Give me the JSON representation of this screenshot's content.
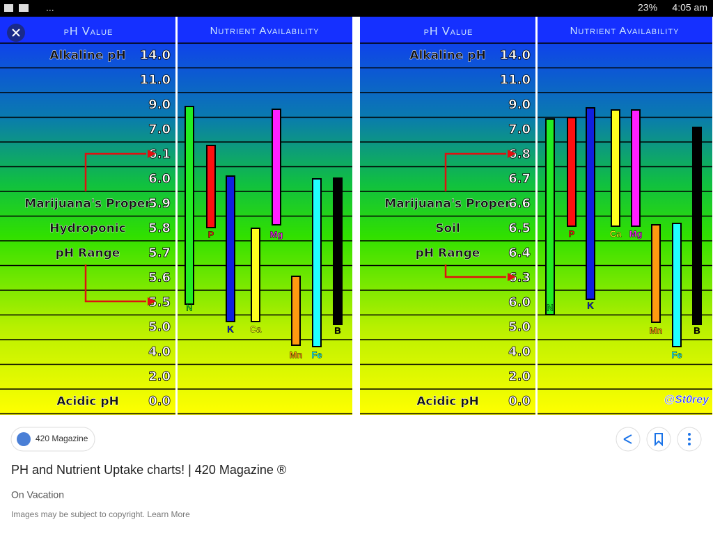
{
  "status_bar": {
    "dots": "...",
    "battery": "23%",
    "time": "4:05 am"
  },
  "panels": [
    {
      "header_ph": "pH Value",
      "header_nutrients": "Nutrient Availability",
      "side_labels": [
        "Alkaline pH",
        "Marijuana's Proper",
        "Hydroponic",
        "pH Range",
        "Acidic pH"
      ],
      "ph_values": [
        "14.0",
        "11.0",
        "9.0",
        "7.0",
        "6.1",
        "6.0",
        "5.9",
        "5.8",
        "5.7",
        "5.6",
        "5.5",
        "5.0",
        "4.0",
        "2.0",
        "0.0"
      ],
      "nutrients": [
        "N",
        "P",
        "K",
        "Ca",
        "Mg",
        "Mn",
        "Fe",
        "B"
      ]
    },
    {
      "header_ph": "pH Value",
      "header_nutrients": "Nutrient Availability",
      "side_labels": [
        "Alkaline pH",
        "Marijuana's Proper",
        "Soil",
        "pH Range",
        "Acidic pH"
      ],
      "ph_values": [
        "14.0",
        "11.0",
        "9.0",
        "7.0",
        "6.8",
        "6.7",
        "6.6",
        "6.5",
        "6.4",
        "6.3",
        "6.0",
        "5.0",
        "4.0",
        "2.0",
        "0.0"
      ],
      "nutrients": [
        "N",
        "P",
        "K",
        "Ca",
        "Mg",
        "Mn",
        "Fe",
        "B"
      ]
    }
  ],
  "watermark": "@St0rey",
  "source": "420 Magazine",
  "title": "PH and Nutrient Uptake charts! | 420 Magazine ®",
  "subtitle": "On Vacation",
  "notice": "Images may be subject to copyright. Learn More"
}
